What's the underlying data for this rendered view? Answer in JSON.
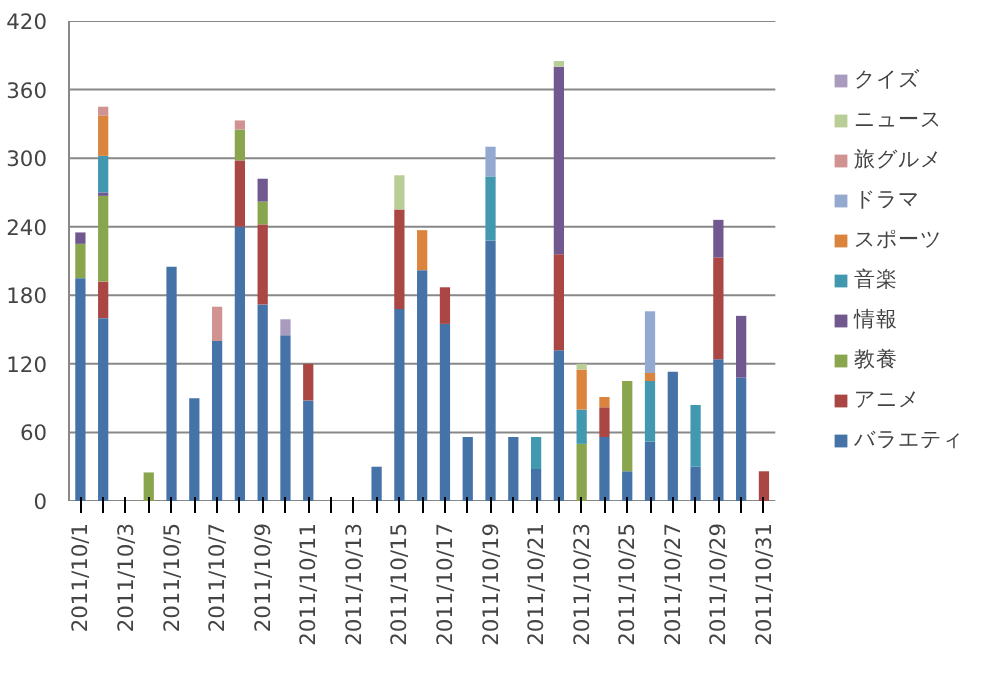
{
  "chart_data": {
    "type": "bar",
    "stacked": true,
    "categories": [
      "2011/10/1",
      null,
      "2011/10/3",
      null,
      "2011/10/5",
      null,
      "2011/10/7",
      null,
      "2011/10/9",
      null,
      "2011/10/11",
      null,
      "2011/10/13",
      null,
      "2011/10/15",
      null,
      "2011/10/17",
      null,
      "2011/10/19",
      null,
      "2011/10/21",
      null,
      "2011/10/23",
      null,
      "2011/10/25",
      null,
      "2011/10/27",
      null,
      "2011/10/29",
      null,
      "2011/10/31"
    ],
    "ylim": [
      0,
      420
    ],
    "yticks": [
      0,
      60,
      120,
      180,
      240,
      300,
      360,
      420
    ],
    "grid": "y",
    "legend": "right",
    "series": [
      {
        "name": "バラエティ",
        "color": "#4572a7",
        "values": [
          195,
          160,
          null,
          null,
          205,
          90,
          140,
          240,
          172,
          145,
          88,
          null,
          null,
          30,
          168,
          202,
          155,
          56,
          228,
          56,
          28,
          132,
          null,
          56,
          26,
          52,
          113,
          30,
          124,
          108,
          null
        ]
      },
      {
        "name": "アニメ",
        "color": "#aa4643",
        "values": [
          null,
          32,
          null,
          null,
          null,
          null,
          null,
          58,
          70,
          null,
          32,
          null,
          null,
          null,
          87,
          null,
          32,
          null,
          null,
          null,
          null,
          84,
          null,
          26,
          null,
          null,
          null,
          null,
          89,
          null,
          26
        ]
      },
      {
        "name": "教養",
        "color": "#89a54e",
        "values": [
          30,
          75,
          null,
          25,
          null,
          null,
          null,
          27,
          20,
          null,
          null,
          null,
          null,
          null,
          null,
          null,
          null,
          null,
          null,
          null,
          null,
          null,
          50,
          null,
          79,
          null,
          null,
          null,
          null,
          null,
          null
        ]
      },
      {
        "name": "情報",
        "color": "#71588f",
        "values": [
          10,
          3,
          null,
          null,
          null,
          null,
          null,
          null,
          20,
          null,
          null,
          null,
          null,
          null,
          null,
          null,
          null,
          null,
          null,
          null,
          null,
          164,
          null,
          null,
          null,
          null,
          null,
          null,
          33,
          54,
          null
        ]
      },
      {
        "name": "音楽",
        "color": "#4198af",
        "values": [
          null,
          32,
          null,
          null,
          null,
          null,
          null,
          null,
          null,
          null,
          null,
          null,
          null,
          null,
          null,
          null,
          null,
          null,
          56,
          null,
          28,
          null,
          30,
          null,
          null,
          53,
          null,
          54,
          null,
          null,
          null
        ]
      },
      {
        "name": "スポーツ",
        "color": "#db843d",
        "values": [
          null,
          35,
          null,
          null,
          null,
          null,
          null,
          null,
          null,
          null,
          null,
          null,
          null,
          null,
          null,
          35,
          null,
          null,
          null,
          null,
          null,
          null,
          35,
          9,
          null,
          7,
          null,
          null,
          null,
          null,
          null
        ]
      },
      {
        "name": "ドラマ",
        "color": "#93a9cf",
        "values": [
          null,
          null,
          null,
          null,
          null,
          null,
          null,
          null,
          null,
          null,
          null,
          null,
          null,
          null,
          null,
          null,
          null,
          null,
          26,
          null,
          null,
          null,
          null,
          null,
          null,
          54,
          null,
          null,
          null,
          null,
          null
        ]
      },
      {
        "name": "旅グルメ",
        "color": "#d19392",
        "values": [
          null,
          8,
          null,
          null,
          null,
          null,
          30,
          8,
          null,
          null,
          null,
          null,
          null,
          null,
          null,
          null,
          null,
          null,
          null,
          null,
          null,
          null,
          null,
          null,
          null,
          null,
          null,
          null,
          null,
          null,
          null
        ]
      },
      {
        "name": "ニュース",
        "color": "#b9cd96",
        "values": [
          null,
          null,
          null,
          null,
          null,
          null,
          null,
          null,
          null,
          null,
          null,
          null,
          null,
          null,
          30,
          null,
          null,
          null,
          null,
          null,
          null,
          5,
          5,
          null,
          null,
          null,
          null,
          null,
          null,
          null,
          null
        ]
      },
      {
        "name": "クイズ",
        "color": "#a99bbd",
        "values": [
          null,
          null,
          null,
          null,
          null,
          null,
          null,
          null,
          null,
          14,
          null,
          null,
          null,
          null,
          null,
          null,
          null,
          null,
          null,
          null,
          null,
          null,
          null,
          null,
          null,
          null,
          null,
          null,
          null,
          null,
          null
        ]
      }
    ]
  }
}
